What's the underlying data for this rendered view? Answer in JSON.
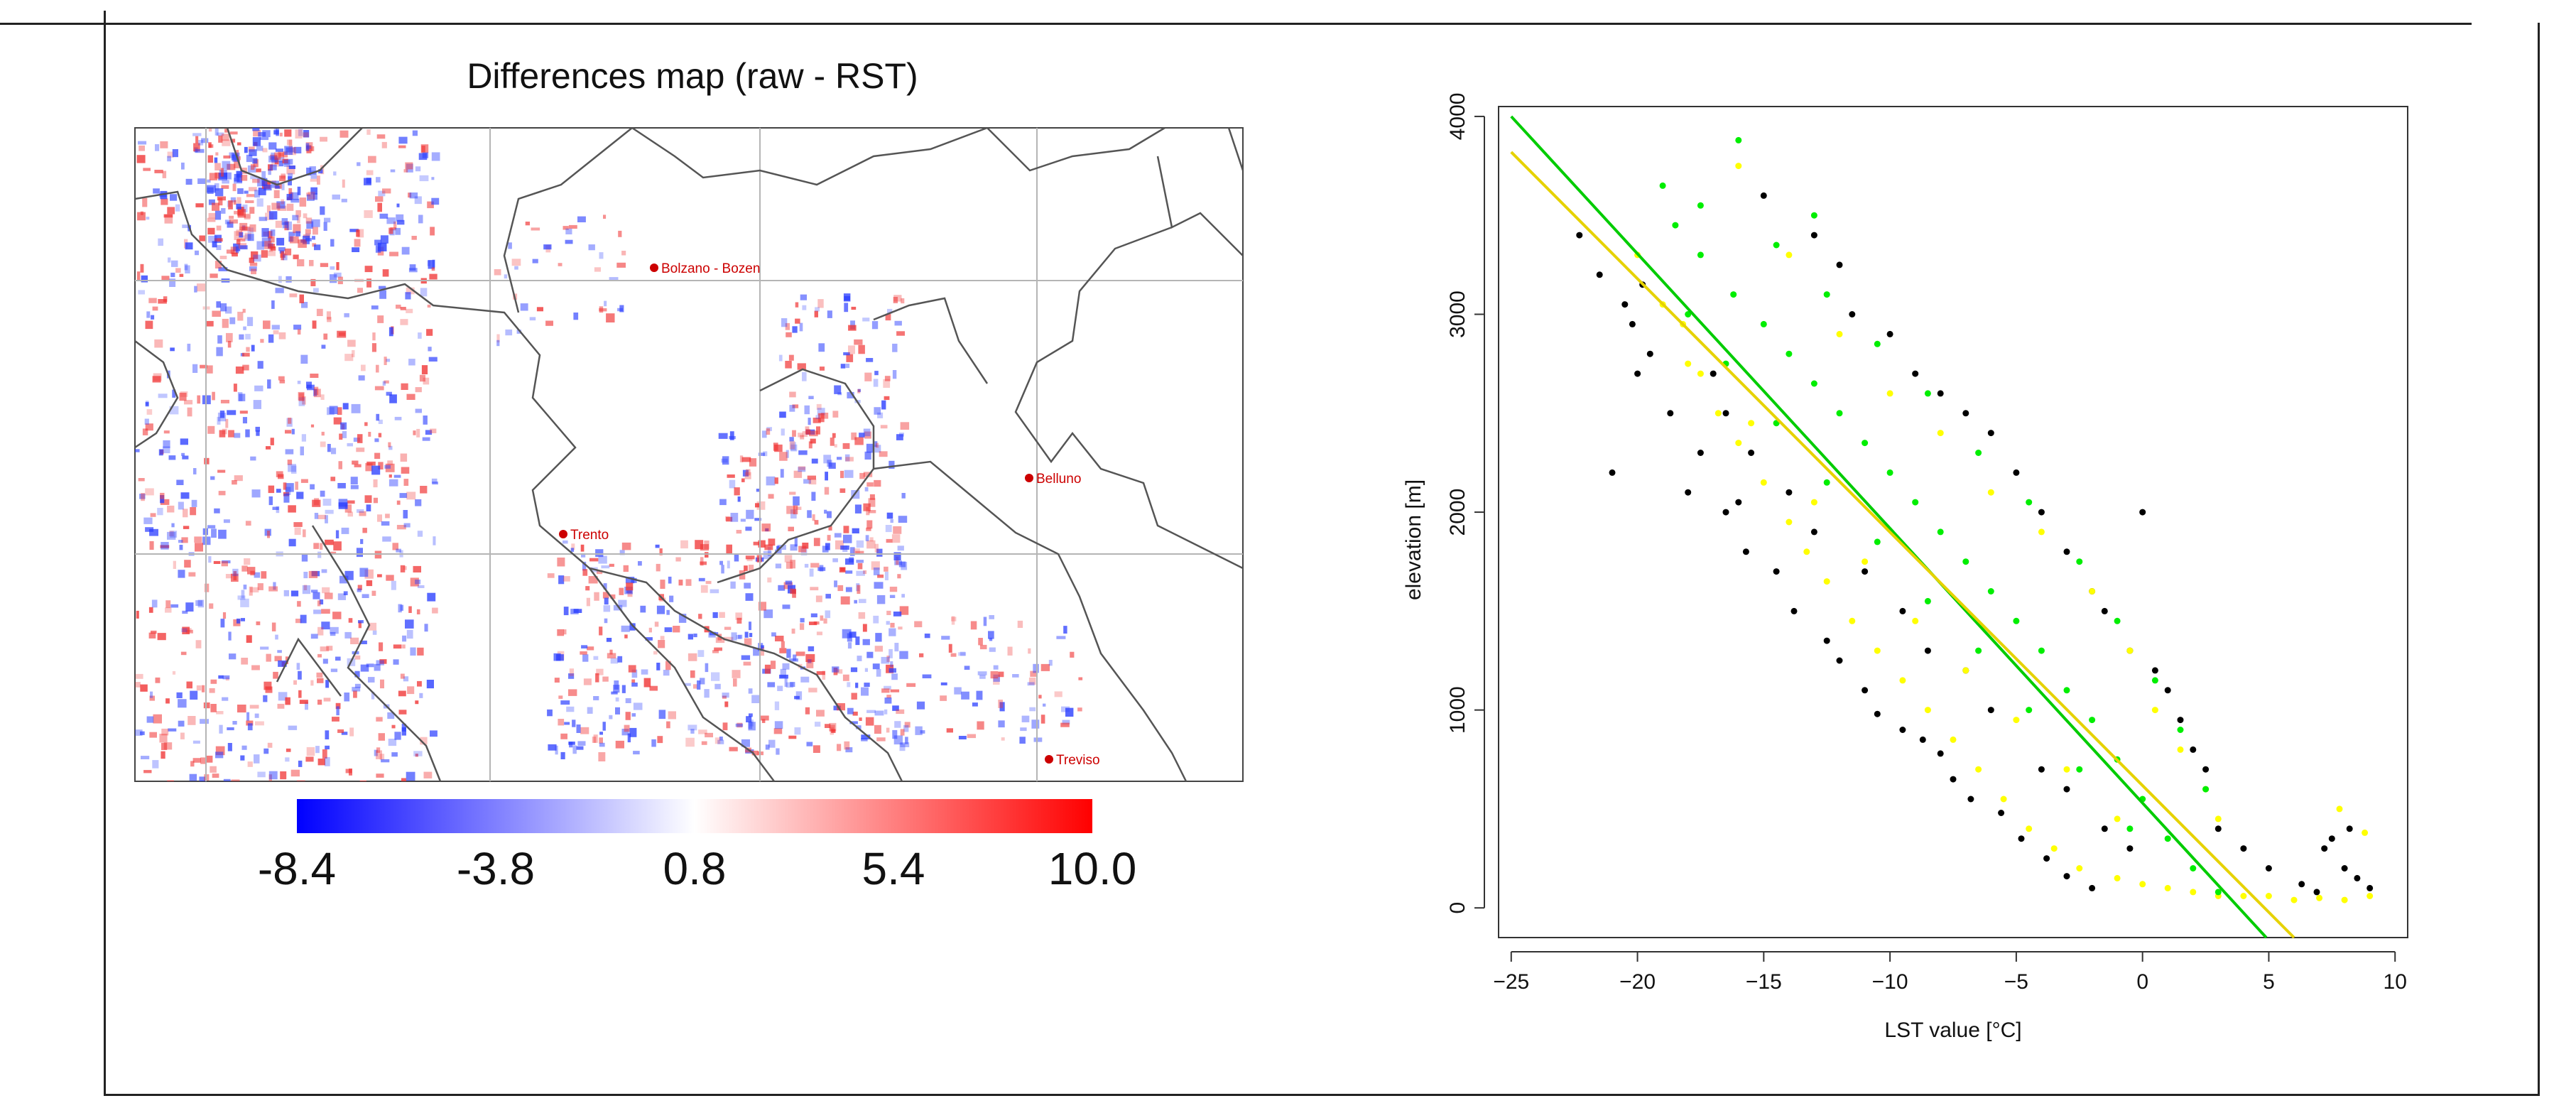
{
  "map": {
    "title": "Differences map (raw - RST)",
    "cities": [
      "Bolzano - Bozen",
      "Trento",
      "Belluno",
      "Treviso"
    ],
    "colorbar": {
      "ticks": [
        "-8.4",
        "-3.8",
        "0.8",
        "5.4",
        "10.0"
      ],
      "min": -8.4,
      "max": 10.0,
      "colors": [
        "#0000ff",
        "#ffffff",
        "#ff0000"
      ]
    }
  },
  "chart_data": {
    "type": "scatter",
    "xlabel": "LST value [°C]",
    "ylabel": "elevation [m]",
    "xlim": [
      -25.5,
      10.5
    ],
    "ylim": [
      -150,
      4050
    ],
    "xticks": [
      -25,
      -20,
      -15,
      -10,
      -5,
      0,
      5,
      10
    ],
    "yticks": [
      0,
      1000,
      2000,
      3000,
      4000
    ],
    "series": [
      {
        "name": "black",
        "color": "#000000",
        "points": [
          [
            -22.3,
            3400
          ],
          [
            -21.5,
            3200
          ],
          [
            -20.5,
            3050
          ],
          [
            -19.8,
            3150
          ],
          [
            -20.2,
            2950
          ],
          [
            -21,
            2200
          ],
          [
            -20,
            2700
          ],
          [
            -19.5,
            2800
          ],
          [
            -18.7,
            2500
          ],
          [
            -17.5,
            2300
          ],
          [
            -18,
            2100
          ],
          [
            -16.5,
            2000
          ],
          [
            -15.7,
            1800
          ],
          [
            -16,
            2050
          ],
          [
            -14.5,
            1700
          ],
          [
            -13.8,
            1500
          ],
          [
            -12.5,
            1350
          ],
          [
            -12,
            1250
          ],
          [
            -11,
            1100
          ],
          [
            -10.5,
            980
          ],
          [
            -9.5,
            900
          ],
          [
            -8.7,
            850
          ],
          [
            -8,
            780
          ],
          [
            -7.5,
            650
          ],
          [
            -6.8,
            550
          ],
          [
            -5.6,
            480
          ],
          [
            -4.8,
            350
          ],
          [
            -3.8,
            250
          ],
          [
            -3,
            160
          ],
          [
            -2,
            100
          ],
          [
            -15,
            3600
          ],
          [
            -13,
            3400
          ],
          [
            -12,
            3250
          ],
          [
            -11.5,
            3000
          ],
          [
            -10,
            2900
          ],
          [
            -9,
            2700
          ],
          [
            -8,
            2600
          ],
          [
            -7,
            2500
          ],
          [
            -6,
            2400
          ],
          [
            -5,
            2200
          ],
          [
            -4,
            2000
          ],
          [
            -3,
            1800
          ],
          [
            -2,
            1600
          ],
          [
            -1.5,
            1500
          ],
          [
            -0.5,
            1300
          ],
          [
            0,
            2000
          ],
          [
            0.5,
            1200
          ],
          [
            1,
            1100
          ],
          [
            1.5,
            950
          ],
          [
            2,
            800
          ],
          [
            2.5,
            700
          ],
          [
            3,
            400
          ],
          [
            4,
            300
          ],
          [
            5,
            200
          ],
          [
            6.3,
            120
          ],
          [
            7.5,
            350
          ],
          [
            8,
            200
          ],
          [
            8.5,
            150
          ],
          [
            9,
            100
          ],
          [
            7.2,
            300
          ],
          [
            6.9,
            80
          ],
          [
            8.2,
            400
          ],
          [
            -16.5,
            2500
          ],
          [
            -17,
            2700
          ],
          [
            -15.5,
            2300
          ],
          [
            -14,
            2100
          ],
          [
            -13,
            1900
          ],
          [
            -11,
            1700
          ],
          [
            -9.5,
            1500
          ],
          [
            -8.5,
            1300
          ],
          [
            -7,
            1200
          ],
          [
            -6,
            1000
          ],
          [
            -4,
            700
          ],
          [
            -3,
            600
          ],
          [
            -1.5,
            400
          ],
          [
            -0.5,
            300
          ]
        ]
      },
      {
        "name": "yellow",
        "color": "#ffff00",
        "points": [
          [
            -20,
            3300
          ],
          [
            -19,
            3050
          ],
          [
            -18.2,
            2950
          ],
          [
            -17.5,
            2700
          ],
          [
            -16.8,
            2500
          ],
          [
            -16,
            2350
          ],
          [
            -15,
            2150
          ],
          [
            -14,
            1950
          ],
          [
            -13.3,
            1800
          ],
          [
            -12.5,
            1650
          ],
          [
            -11.5,
            1450
          ],
          [
            -10.5,
            1300
          ],
          [
            -9.5,
            1150
          ],
          [
            -8.5,
            1000
          ],
          [
            -7.5,
            850
          ],
          [
            -6.5,
            700
          ],
          [
            -5.5,
            550
          ],
          [
            -4.5,
            400
          ],
          [
            -3.5,
            300
          ],
          [
            -2.5,
            200
          ],
          [
            -1,
            150
          ],
          [
            0,
            120
          ],
          [
            1,
            100
          ],
          [
            2,
            80
          ],
          [
            3,
            60
          ],
          [
            4,
            60
          ],
          [
            5,
            60
          ],
          [
            6,
            40
          ],
          [
            7,
            50
          ],
          [
            8,
            40
          ],
          [
            9,
            60
          ],
          [
            8.8,
            380
          ],
          [
            7.8,
            500
          ],
          [
            -16,
            3750
          ],
          [
            -14,
            3300
          ],
          [
            -12,
            2900
          ],
          [
            -10,
            2600
          ],
          [
            -8,
            2400
          ],
          [
            -6,
            2100
          ],
          [
            -4,
            1900
          ],
          [
            -2,
            1600
          ],
          [
            -0.5,
            1300
          ],
          [
            0.5,
            1000
          ],
          [
            1.5,
            800
          ],
          [
            2.5,
            600
          ],
          [
            3,
            450
          ],
          [
            -18,
            2750
          ],
          [
            -15.5,
            2450
          ],
          [
            -13,
            2050
          ],
          [
            -11,
            1750
          ],
          [
            -9,
            1450
          ],
          [
            -7,
            1200
          ],
          [
            -5,
            950
          ],
          [
            -3,
            700
          ],
          [
            -1,
            450
          ]
        ]
      },
      {
        "name": "green",
        "color": "#00ee00",
        "points": [
          [
            -19,
            3650
          ],
          [
            -18.5,
            3450
          ],
          [
            -17.5,
            3300
          ],
          [
            -16.2,
            3100
          ],
          [
            -15,
            2950
          ],
          [
            -14,
            2800
          ],
          [
            -13,
            2650
          ],
          [
            -12,
            2500
          ],
          [
            -11,
            2350
          ],
          [
            -10,
            2200
          ],
          [
            -9,
            2050
          ],
          [
            -8,
            1900
          ],
          [
            -7,
            1750
          ],
          [
            -6,
            1600
          ],
          [
            -5,
            1450
          ],
          [
            -4,
            1300
          ],
          [
            -3,
            1100
          ],
          [
            -2,
            950
          ],
          [
            -1,
            750
          ],
          [
            0,
            550
          ],
          [
            1,
            350
          ],
          [
            2,
            200
          ],
          [
            3,
            80
          ],
          [
            -16,
            3880
          ],
          [
            -17.5,
            3550
          ],
          [
            -14.5,
            3350
          ],
          [
            -12.5,
            3100
          ],
          [
            -13,
            3500
          ],
          [
            -10.5,
            2850
          ],
          [
            -8.5,
            2600
          ],
          [
            -6.5,
            2300
          ],
          [
            -4.5,
            2050
          ],
          [
            -2.5,
            1750
          ],
          [
            -1,
            1450
          ],
          [
            0.5,
            1150
          ],
          [
            1.5,
            900
          ],
          [
            2.5,
            600
          ],
          [
            -18,
            3000
          ],
          [
            -16.5,
            2750
          ],
          [
            -14.5,
            2450
          ],
          [
            -12.5,
            2150
          ],
          [
            -10.5,
            1850
          ],
          [
            -8.5,
            1550
          ],
          [
            -6.5,
            1300
          ],
          [
            -4.5,
            1000
          ],
          [
            -2.5,
            700
          ],
          [
            -0.5,
            400
          ]
        ]
      }
    ],
    "lines": [
      {
        "name": "green regression",
        "color": "#00cc00",
        "x": [
          -25,
          4.9
        ],
        "y": [
          4000,
          -150
        ]
      },
      {
        "name": "yellow regression",
        "color": "#e6d200",
        "x": [
          -25,
          6
        ],
        "y": [
          3820,
          -150
        ]
      }
    ]
  }
}
